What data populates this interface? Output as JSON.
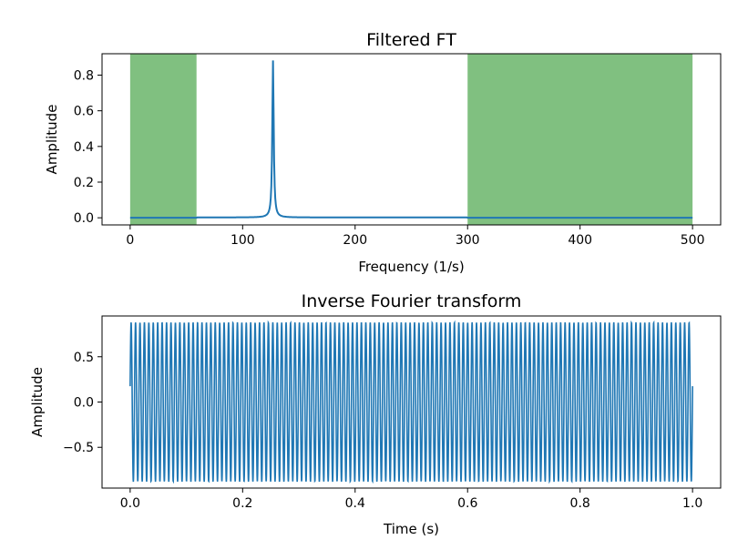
{
  "colors": {
    "line": "#1f77b4",
    "band": "#80c080",
    "axes": "#000000",
    "background": "#ffffff"
  },
  "chart_data": [
    {
      "type": "line",
      "title": "Filtered FT",
      "xlabel": "Frequency (1/s)",
      "ylabel": "Amplitude",
      "xlim": [
        -25,
        525
      ],
      "ylim": [
        -0.04,
        0.92
      ],
      "xticks": [
        0,
        100,
        200,
        300,
        400,
        500
      ],
      "xtick_labels": [
        "0",
        "100",
        "200",
        "300",
        "400",
        "500"
      ],
      "yticks": [
        0.0,
        0.2,
        0.4,
        0.6,
        0.8
      ],
      "ytick_labels": [
        "0.0",
        "0.2",
        "0.4",
        "0.6",
        "0.8"
      ],
      "grid": false,
      "shaded_bands": [
        [
          0,
          59
        ],
        [
          300,
          500
        ]
      ],
      "series": [
        {
          "peak_frequency": 127,
          "peak_amplitude": 0.88,
          "x_range": [
            0,
            500
          ]
        }
      ]
    },
    {
      "type": "line",
      "title": "Inverse Fourier transform",
      "xlabel": "Time (s)",
      "ylabel": "Amplitude",
      "xlim": [
        -0.05,
        1.05
      ],
      "ylim": [
        -0.95,
        0.95
      ],
      "xticks": [
        0.0,
        0.2,
        0.4,
        0.6,
        0.8,
        1.0
      ],
      "xtick_labels": [
        "0.0",
        "0.2",
        "0.4",
        "0.6",
        "0.8",
        "1.0"
      ],
      "yticks": [
        -0.5,
        0.0,
        0.5
      ],
      "ytick_labels": [
        "−0.5",
        "0.0",
        "0.5"
      ],
      "grid": false,
      "series": [
        {
          "frequency": 127,
          "amplitude": 0.88,
          "x_range": [
            0,
            1
          ]
        }
      ]
    }
  ]
}
